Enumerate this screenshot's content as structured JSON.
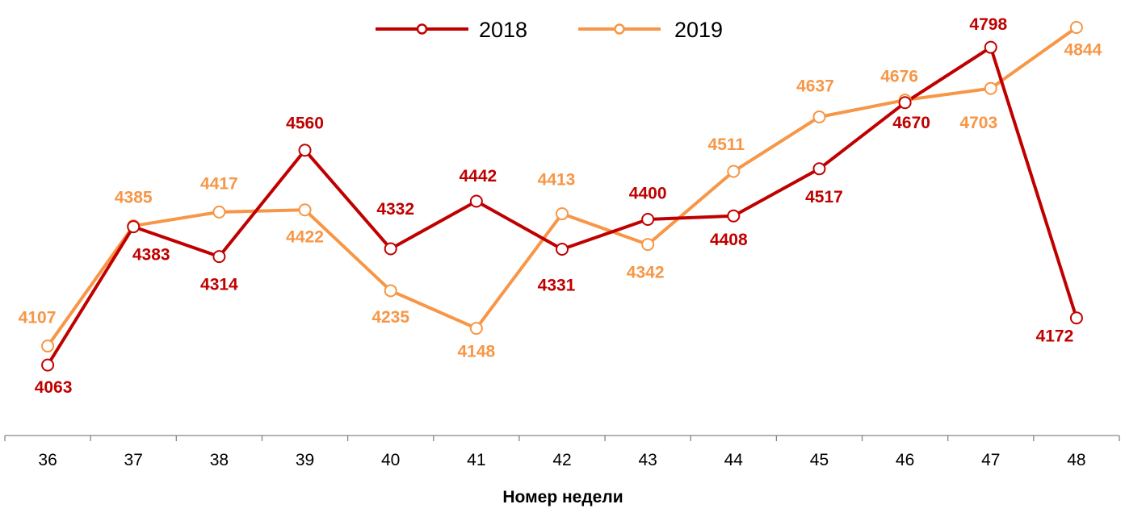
{
  "chart_data": {
    "type": "line",
    "title": "",
    "xlabel": "Номер недели",
    "ylabel": "",
    "categories": [
      "36",
      "37",
      "38",
      "39",
      "40",
      "41",
      "42",
      "43",
      "44",
      "45",
      "46",
      "47",
      "48"
    ],
    "series": [
      {
        "name": "2018",
        "color": "#c00000",
        "values": [
          4063,
          4383,
          4314,
          4560,
          4332,
          4442,
          4331,
          4400,
          4408,
          4517,
          4670,
          4798,
          4172
        ]
      },
      {
        "name": "2019",
        "color": "#f79646",
        "values": [
          4107,
          4385,
          4417,
          4422,
          4235,
          4148,
          4413,
          4342,
          4511,
          4637,
          4676,
          4703,
          4844
        ]
      }
    ],
    "ylim": [
      3900,
      4900
    ],
    "y_axis_visible": false,
    "grid": false,
    "legend": "top-center",
    "data_labels": true,
    "markers": "hollow-circle"
  }
}
